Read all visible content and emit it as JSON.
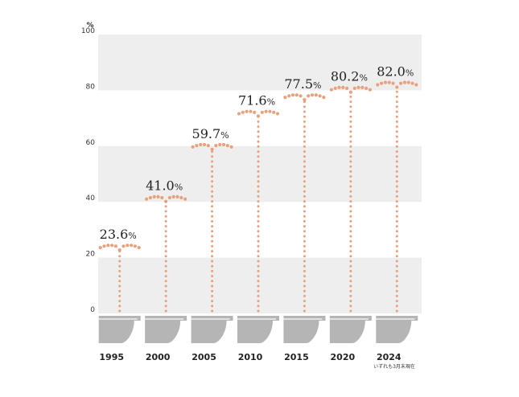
{
  "chart_data": {
    "type": "bar",
    "categories": [
      "1995",
      "2000",
      "2005",
      "2010",
      "2015",
      "2020",
      "2024"
    ],
    "values": [
      23.6,
      41.0,
      59.7,
      71.6,
      77.5,
      80.2,
      82.0
    ],
    "value_labels": [
      "23.6",
      "41.0",
      "59.7",
      "71.6",
      "77.5",
      "80.2",
      "82.0"
    ],
    "value_suffix": "%",
    "ylabel": "%",
    "ylim": [
      0,
      100
    ],
    "yticks": [
      0,
      20,
      40,
      60,
      80,
      100
    ],
    "grid": "alternating horizontal bands",
    "note": "いずれも3月末現在",
    "colors": {
      "dots": "#E9A07C",
      "band": "#EEEEEE",
      "toilet": "#B5B5B5"
    }
  }
}
